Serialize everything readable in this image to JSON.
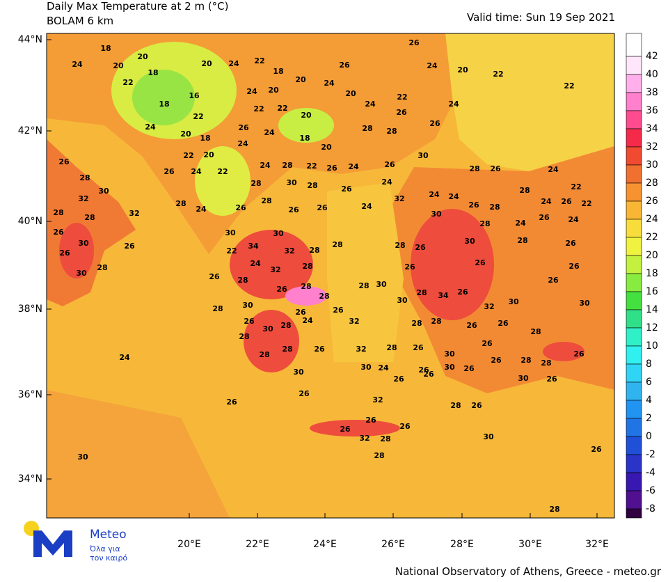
{
  "header": {
    "title": "Daily Max Temperature at 2 m (°C)",
    "subtitle": "BOLAM 6 km",
    "valid_time": "Valid time: Sun 19 Sep 2021"
  },
  "axes": {
    "lat_labels": [
      "44°N",
      "42°N",
      "40°N",
      "38°N",
      "36°N",
      "34°N"
    ],
    "lon_labels": [
      "20°E",
      "22°E",
      "24°E",
      "26°E",
      "28°E",
      "30°E",
      "32°E"
    ]
  },
  "colorbar": {
    "levels": [
      42,
      40,
      38,
      36,
      34,
      32,
      30,
      28,
      26,
      24,
      22,
      20,
      18,
      16,
      14,
      12,
      10,
      8,
      6,
      4,
      2,
      0,
      -2,
      -4,
      -6,
      -8
    ],
    "colors": [
      "#ffffff",
      "#ffe6fa",
      "#ffb0ea",
      "#ff80cc",
      "#ff4c90",
      "#f52a4a",
      "#f04a30",
      "#f07030",
      "#f69330",
      "#f8b634",
      "#f8dc3c",
      "#f0f240",
      "#c4f040",
      "#88ec40",
      "#44e040",
      "#30e088",
      "#30f0c8",
      "#30f0f0",
      "#30d4f4",
      "#30b4f0",
      "#2094f0",
      "#2074e4",
      "#2050d8",
      "#2a34c8",
      "#3818b0",
      "#501090",
      "#300040"
    ]
  },
  "map": {
    "labels": [
      "18",
      "20",
      "24",
      "20",
      "18",
      "22",
      "20",
      "24",
      "22",
      "18",
      "20",
      "24",
      "20",
      "16",
      "18",
      "22",
      "22",
      "22",
      "20",
      "26",
      "24",
      "18",
      "20",
      "20",
      "18",
      "24",
      "22",
      "20",
      "24",
      "26",
      "26",
      "24",
      "20",
      "22",
      "22",
      "24",
      "20",
      "24",
      "22",
      "26",
      "24",
      "26",
      "28",
      "28",
      "26",
      "28",
      "30",
      "32",
      "28",
      "28",
      "32",
      "26",
      "30",
      "26",
      "28",
      "30",
      "26",
      "26",
      "24",
      "22",
      "24",
      "28",
      "22",
      "26",
      "24",
      "26",
      "30",
      "28",
      "26",
      "24",
      "22",
      "22",
      "28",
      "30",
      "28",
      "26",
      "24",
      "32",
      "24",
      "24",
      "26",
      "28",
      "28",
      "24",
      "26",
      "28",
      "24",
      "26",
      "28",
      "26",
      "26",
      "24",
      "30",
      "28",
      "24",
      "26",
      "24",
      "30",
      "30",
      "34",
      "32",
      "28",
      "28",
      "28",
      "26",
      "30",
      "28",
      "26",
      "22",
      "24",
      "32",
      "28",
      "26",
      "26",
      "26",
      "26",
      "28",
      "26",
      "28",
      "28",
      "30",
      "28",
      "34",
      "26",
      "26",
      "28",
      "30",
      "28",
      "26",
      "26",
      "30",
      "32",
      "30",
      "30",
      "26",
      "30",
      "28",
      "24",
      "32",
      "28",
      "28",
      "26",
      "26",
      "28",
      "28",
      "28",
      "26",
      "24",
      "28",
      "32",
      "28",
      "26",
      "30",
      "26",
      "26",
      "26",
      "28",
      "28",
      "30",
      "30",
      "24",
      "26",
      "30",
      "26",
      "26",
      "26",
      "30",
      "26",
      "26",
      "26",
      "32",
      "28",
      "26",
      "26",
      "26",
      "26",
      "32",
      "28",
      "30",
      "30",
      "28",
      "26",
      "28",
      "26",
      "26",
      "26"
    ]
  },
  "logo": {
    "name": "Meteo",
    "tagline_1": "Όλα για",
    "tagline_2": "τον καιρό"
  },
  "footer": {
    "credit": "National Observatory of Athens, Greece - meteo.gr"
  }
}
